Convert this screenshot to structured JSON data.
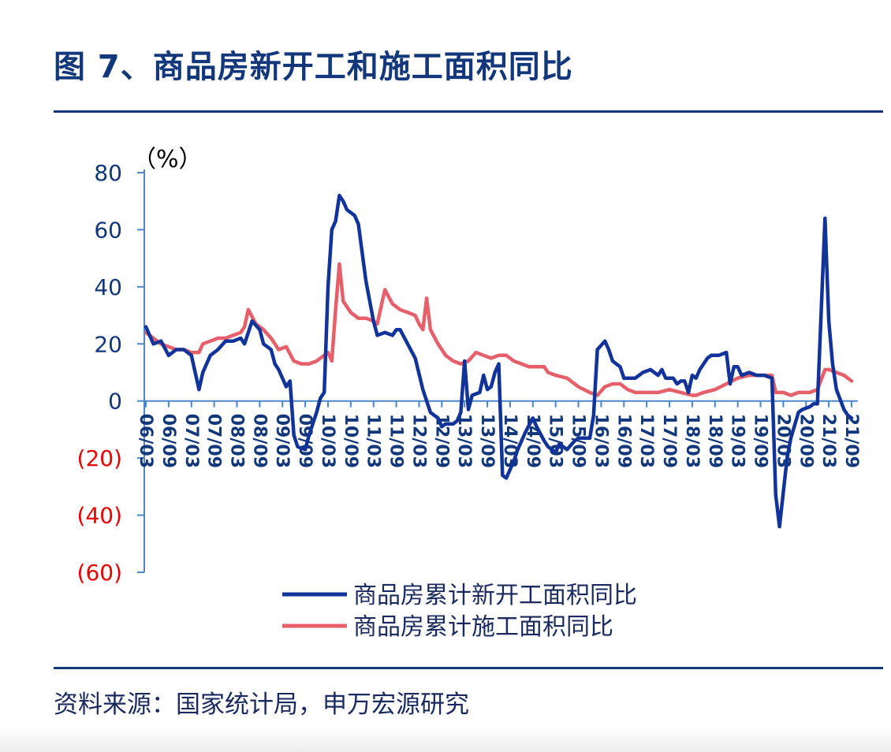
{
  "page": {
    "title": "图 7、商品房新开工和施工面积同比",
    "source": "资料来源：国家统计局，申万宏源研究"
  },
  "chart_data": {
    "type": "line",
    "unit_label": "（%）",
    "ylim": [
      -60,
      80
    ],
    "y_ticks": [
      {
        "value": 80,
        "label": "80"
      },
      {
        "value": 60,
        "label": "60"
      },
      {
        "value": 40,
        "label": "40"
      },
      {
        "value": 20,
        "label": "20"
      },
      {
        "value": 0,
        "label": "0"
      },
      {
        "value": -20,
        "label": "(20)"
      },
      {
        "value": -40,
        "label": "(40)"
      },
      {
        "value": -60,
        "label": "(60)"
      }
    ],
    "negative_tick_color": "#e60000",
    "positive_tick_color": "#12377a",
    "x_range": [
      "2006-03",
      "2021-09"
    ],
    "x_ticks": [
      "06/03",
      "06/09",
      "07/03",
      "07/09",
      "08/03",
      "08/09",
      "09/03",
      "09/09",
      "10/03",
      "10/09",
      "11/03",
      "11/09",
      "12/03",
      "12/09",
      "13/03",
      "13/09",
      "14/03",
      "14/09",
      "15/03",
      "15/09",
      "16/03",
      "16/09",
      "17/03",
      "17/09",
      "18/03",
      "18/09",
      "19/03",
      "19/09",
      "20/03",
      "20/09",
      "21/03",
      "21/09"
    ],
    "series": [
      {
        "name": "商品房累计新开工面积同比",
        "color": "#12349a",
        "points": [
          [
            "2006-03",
            26
          ],
          [
            "2006-05",
            20
          ],
          [
            "2006-07",
            21
          ],
          [
            "2006-09",
            16
          ],
          [
            "2006-11",
            18
          ],
          [
            "2007-01",
            18
          ],
          [
            "2007-03",
            16
          ],
          [
            "2007-05",
            4
          ],
          [
            "2007-06",
            10
          ],
          [
            "2007-08",
            16
          ],
          [
            "2007-10",
            18
          ],
          [
            "2007-12",
            21
          ],
          [
            "2008-02",
            21
          ],
          [
            "2008-04",
            22
          ],
          [
            "2008-05",
            20
          ],
          [
            "2008-07",
            28
          ],
          [
            "2008-09",
            25
          ],
          [
            "2008-10",
            20
          ],
          [
            "2008-12",
            18
          ],
          [
            "2009-01",
            13
          ],
          [
            "2009-02",
            11
          ],
          [
            "2009-04",
            5
          ],
          [
            "2009-05",
            7
          ],
          [
            "2009-06",
            -12
          ],
          [
            "2009-07",
            -16
          ],
          [
            "2009-09",
            -17
          ],
          [
            "2009-10",
            -12
          ],
          [
            "2009-12",
            -4
          ],
          [
            "2010-01",
            1
          ],
          [
            "2010-02",
            3
          ],
          [
            "2010-03",
            40
          ],
          [
            "2010-04",
            60
          ],
          [
            "2010-05",
            63
          ],
          [
            "2010-06",
            72
          ],
          [
            "2010-07",
            70
          ],
          [
            "2010-08",
            67
          ],
          [
            "2010-10",
            65
          ],
          [
            "2010-11",
            62
          ],
          [
            "2011-01",
            42
          ],
          [
            "2011-02",
            35
          ],
          [
            "2011-03",
            28
          ],
          [
            "2011-04",
            23
          ],
          [
            "2011-06",
            24
          ],
          [
            "2011-08",
            23
          ],
          [
            "2011-09",
            25
          ],
          [
            "2011-10",
            25
          ],
          [
            "2011-12",
            20
          ],
          [
            "2012-02",
            15
          ],
          [
            "2012-04",
            4
          ],
          [
            "2012-05",
            0
          ],
          [
            "2012-06",
            -4
          ],
          [
            "2012-08",
            -6
          ],
          [
            "2012-09",
            -9
          ],
          [
            "2012-10",
            -8
          ],
          [
            "2012-12",
            -8
          ],
          [
            "2013-01",
            -7
          ],
          [
            "2013-02",
            -4
          ],
          [
            "2013-03",
            14
          ],
          [
            "2013-04",
            -3
          ],
          [
            "2013-05",
            2
          ],
          [
            "2013-07",
            3
          ],
          [
            "2013-08",
            9
          ],
          [
            "2013-09",
            4
          ],
          [
            "2013-10",
            5
          ],
          [
            "2013-11",
            10
          ],
          [
            "2013-12",
            13
          ],
          [
            "2014-01",
            -26
          ],
          [
            "2014-02",
            -27
          ],
          [
            "2014-04",
            -21
          ],
          [
            "2014-05",
            -17
          ],
          [
            "2014-07",
            -11
          ],
          [
            "2014-09",
            -6
          ],
          [
            "2014-10",
            -9
          ],
          [
            "2014-12",
            -14
          ],
          [
            "2015-01",
            -16
          ],
          [
            "2015-03",
            -18
          ],
          [
            "2015-04",
            -15
          ],
          [
            "2015-06",
            -17
          ],
          [
            "2015-08",
            -14
          ],
          [
            "2015-09",
            -13
          ],
          [
            "2015-11",
            -13
          ],
          [
            "2015-12",
            -13
          ],
          [
            "2016-01",
            -5
          ],
          [
            "2016-02",
            18
          ],
          [
            "2016-04",
            21
          ],
          [
            "2016-05",
            18
          ],
          [
            "2016-06",
            14
          ],
          [
            "2016-08",
            12
          ],
          [
            "2016-09",
            8
          ],
          [
            "2016-11",
            8
          ],
          [
            "2016-12",
            8
          ],
          [
            "2017-02",
            10
          ],
          [
            "2017-04",
            11
          ],
          [
            "2017-06",
            9
          ],
          [
            "2017-07",
            11
          ],
          [
            "2017-08",
            8
          ],
          [
            "2017-10",
            8
          ],
          [
            "2017-11",
            6
          ],
          [
            "2017-12",
            7
          ],
          [
            "2018-01",
            7
          ],
          [
            "2018-02",
            3
          ],
          [
            "2018-03",
            9
          ],
          [
            "2018-04",
            8
          ],
          [
            "2018-05",
            11
          ],
          [
            "2018-07",
            15
          ],
          [
            "2018-08",
            16
          ],
          [
            "2018-10",
            16
          ],
          [
            "2018-12",
            17
          ],
          [
            "2019-01",
            6
          ],
          [
            "2019-02",
            12
          ],
          [
            "2019-03",
            12
          ],
          [
            "2019-04",
            9
          ],
          [
            "2019-06",
            10
          ],
          [
            "2019-08",
            9
          ],
          [
            "2019-10",
            9
          ],
          [
            "2019-12",
            8
          ],
          [
            "2020-01",
            -33
          ],
          [
            "2020-02",
            -44
          ],
          [
            "2020-04",
            -20
          ],
          [
            "2020-05",
            -13
          ],
          [
            "2020-07",
            -4
          ],
          [
            "2020-08",
            -3
          ],
          [
            "2020-10",
            -2
          ],
          [
            "2020-11",
            -1
          ],
          [
            "2020-12",
            -1
          ],
          [
            "2021-02",
            64
          ],
          [
            "2021-03",
            28
          ],
          [
            "2021-04",
            13
          ],
          [
            "2021-05",
            4
          ],
          [
            "2021-07",
            -3
          ],
          [
            "2021-08",
            -5
          ],
          [
            "2021-09",
            -6
          ]
        ]
      },
      {
        "name": "商品房累计施工面积同比",
        "color": "#e5606a",
        "points": [
          [
            "2006-03",
            24
          ],
          [
            "2006-05",
            22
          ],
          [
            "2006-07",
            20
          ],
          [
            "2006-09",
            19
          ],
          [
            "2006-11",
            18
          ],
          [
            "2007-01",
            18
          ],
          [
            "2007-03",
            17
          ],
          [
            "2007-05",
            17
          ],
          [
            "2007-06",
            20
          ],
          [
            "2007-08",
            21
          ],
          [
            "2007-10",
            22
          ],
          [
            "2007-12",
            22
          ],
          [
            "2008-02",
            23
          ],
          [
            "2008-04",
            24
          ],
          [
            "2008-05",
            26
          ],
          [
            "2008-06",
            32
          ],
          [
            "2008-08",
            27
          ],
          [
            "2008-10",
            25
          ],
          [
            "2008-12",
            22
          ],
          [
            "2009-02",
            18
          ],
          [
            "2009-04",
            19
          ],
          [
            "2009-06",
            14
          ],
          [
            "2009-08",
            13
          ],
          [
            "2009-10",
            13
          ],
          [
            "2009-12",
            14
          ],
          [
            "2010-02",
            16
          ],
          [
            "2010-03",
            17
          ],
          [
            "2010-04",
            14
          ],
          [
            "2010-05",
            32
          ],
          [
            "2010-06",
            48
          ],
          [
            "2010-07",
            35
          ],
          [
            "2010-09",
            31
          ],
          [
            "2010-11",
            29
          ],
          [
            "2011-01",
            29
          ],
          [
            "2011-03",
            28
          ],
          [
            "2011-04",
            27
          ],
          [
            "2011-06",
            39
          ],
          [
            "2011-08",
            34
          ],
          [
            "2011-10",
            32
          ],
          [
            "2011-12",
            31
          ],
          [
            "2012-02",
            30
          ],
          [
            "2012-03",
            27
          ],
          [
            "2012-04",
            25
          ],
          [
            "2012-05",
            36
          ],
          [
            "2012-06",
            25
          ],
          [
            "2012-08",
            20
          ],
          [
            "2012-10",
            16
          ],
          [
            "2012-12",
            14
          ],
          [
            "2013-02",
            13
          ],
          [
            "2013-04",
            14
          ],
          [
            "2013-06",
            17
          ],
          [
            "2013-08",
            16
          ],
          [
            "2013-10",
            15
          ],
          [
            "2013-12",
            16
          ],
          [
            "2014-02",
            16
          ],
          [
            "2014-04",
            14
          ],
          [
            "2014-06",
            13
          ],
          [
            "2014-08",
            12
          ],
          [
            "2014-10",
            12
          ],
          [
            "2014-12",
            12
          ],
          [
            "2015-01",
            10
          ],
          [
            "2015-03",
            9
          ],
          [
            "2015-06",
            8
          ],
          [
            "2015-09",
            5
          ],
          [
            "2015-12",
            3
          ],
          [
            "2016-02",
            2
          ],
          [
            "2016-04",
            5
          ],
          [
            "2016-06",
            6
          ],
          [
            "2016-08",
            6
          ],
          [
            "2016-10",
            4
          ],
          [
            "2016-12",
            3
          ],
          [
            "2017-03",
            3
          ],
          [
            "2017-06",
            3
          ],
          [
            "2017-09",
            4
          ],
          [
            "2017-12",
            3
          ],
          [
            "2018-03",
            2
          ],
          [
            "2018-04",
            2
          ],
          [
            "2018-06",
            3
          ],
          [
            "2018-09",
            4
          ],
          [
            "2018-12",
            6
          ],
          [
            "2019-03",
            8
          ],
          [
            "2019-06",
            9
          ],
          [
            "2019-09",
            9
          ],
          [
            "2019-12",
            9
          ],
          [
            "2020-01",
            3
          ],
          [
            "2020-03",
            3
          ],
          [
            "2020-05",
            2
          ],
          [
            "2020-07",
            3
          ],
          [
            "2020-10",
            3
          ],
          [
            "2020-12",
            4
          ],
          [
            "2021-02",
            11
          ],
          [
            "2021-03",
            11
          ],
          [
            "2021-05",
            10
          ],
          [
            "2021-07",
            9
          ],
          [
            "2021-08",
            8
          ],
          [
            "2021-09",
            7
          ]
        ]
      }
    ],
    "legend": [
      "商品房累计新开工面积同比",
      "商品房累计施工面积同比"
    ]
  }
}
